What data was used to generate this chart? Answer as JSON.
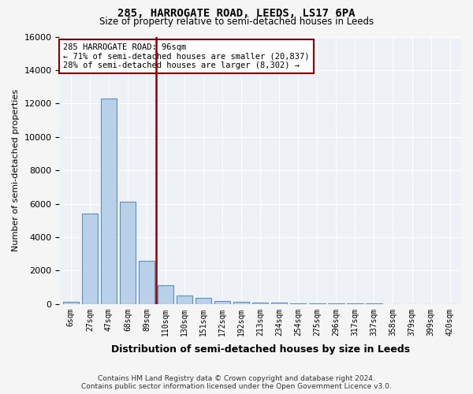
{
  "title": "285, HARROGATE ROAD, LEEDS, LS17 6PA",
  "subtitle": "Size of property relative to semi-detached houses in Leeds",
  "xlabel": "Distribution of semi-detached houses by size in Leeds",
  "ylabel": "Number of semi-detached properties",
  "bar_color": "#b8d0e8",
  "bar_edge_color": "#5a8fc0",
  "bar_categories": [
    "6sqm",
    "27sqm",
    "47sqm",
    "68sqm",
    "89sqm",
    "110sqm",
    "130sqm",
    "151sqm",
    "172sqm",
    "192sqm",
    "213sqm",
    "234sqm",
    "254sqm",
    "275sqm",
    "296sqm",
    "317sqm",
    "337sqm",
    "358sqm",
    "379sqm",
    "399sqm",
    "420sqm"
  ],
  "bar_values": [
    150,
    5400,
    12300,
    6100,
    2600,
    1100,
    500,
    350,
    200,
    150,
    100,
    70,
    50,
    40,
    30,
    20,
    15,
    10,
    5,
    5,
    3
  ],
  "vline_color": "#8b0000",
  "annotation_title": "285 HARROGATE ROAD: 96sqm",
  "annotation_line1": "← 71% of semi-detached houses are smaller (20,837)",
  "annotation_line2": "28% of semi-detached houses are larger (8,302) →",
  "annotation_box_color": "#8b0000",
  "ylim": [
    0,
    16000
  ],
  "yticks": [
    0,
    2000,
    4000,
    6000,
    8000,
    10000,
    12000,
    14000,
    16000
  ],
  "footer_line1": "Contains HM Land Registry data © Crown copyright and database right 2024.",
  "footer_line2": "Contains public sector information licensed under the Open Government Licence v3.0.",
  "bg_color": "#eef2f7",
  "grid_color": "#ffffff"
}
